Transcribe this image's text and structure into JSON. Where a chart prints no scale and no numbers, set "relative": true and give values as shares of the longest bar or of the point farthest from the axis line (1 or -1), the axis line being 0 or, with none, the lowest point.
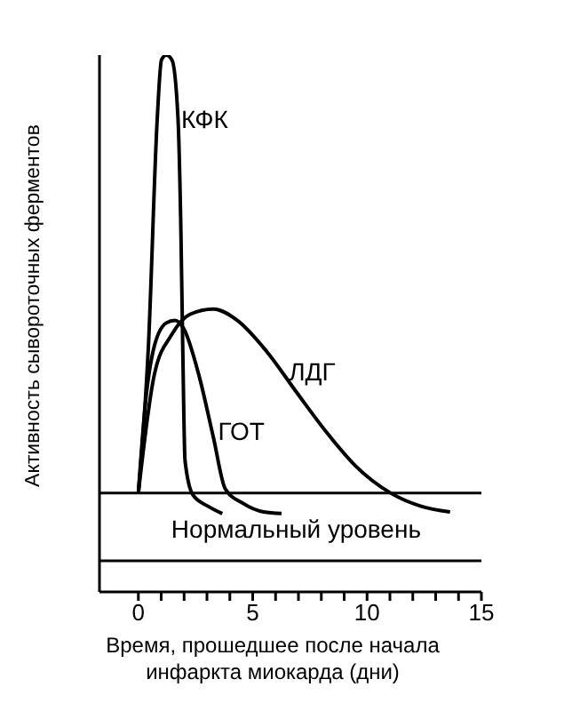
{
  "chart_data": {
    "type": "line",
    "relative": true,
    "xlabel": "Время, прошедшее после начала\nинфаркта миокарда (дни)",
    "ylabel": "Активность сывороточных ферментов",
    "xlim": [
      -1.7,
      15
    ],
    "xticks": [
      0,
      {
        "value": 1,
        "label": null
      },
      {
        "value": 2,
        "label": null
      },
      {
        "value": 3,
        "label": null
      },
      {
        "value": 4,
        "label": null
      },
      5,
      {
        "value": 6,
        "label": null
      },
      {
        "value": 7,
        "label": null
      },
      {
        "value": 8,
        "label": null
      },
      {
        "value": 9,
        "label": null
      },
      10,
      {
        "value": 11,
        "label": null
      },
      {
        "value": 12,
        "label": null
      },
      {
        "value": 13,
        "label": null
      },
      {
        "value": 14,
        "label": null
      },
      15
    ],
    "marker": "none",
    "line_style": "solid",
    "series": [
      {
        "color": "#000000",
        "x": [
          0,
          0.44,
          0.83,
          1.01,
          1.22,
          1.47,
          1.73,
          1.86,
          1.94,
          2.04,
          2.38,
          3.03,
          3.67
        ],
        "values": [
          0.184,
          0.458,
          0.885,
          0.991,
          1.0,
          0.991,
          0.885,
          0.672,
          0.458,
          0.245,
          0.181,
          0.16,
          0.146
        ]
      },
      {
        "color": "#000000",
        "x": [
          0,
          0.31,
          0.7,
          1.22,
          1.6,
          1.99,
          2.64,
          3.28,
          3.8,
          4.58,
          5.48,
          6.26
        ],
        "values": [
          0.184,
          0.352,
          0.458,
          0.501,
          0.506,
          0.49,
          0.405,
          0.288,
          0.192,
          0.165,
          0.149,
          0.146
        ]
      },
      {
        "color": "#000000",
        "x": [
          0,
          0.7,
          1.47,
          2.25,
          3.28,
          4.32,
          5.61,
          6.9,
          8.2,
          9.49,
          11.04,
          12.33,
          13.63
        ],
        "values": [
          0.184,
          0.405,
          0.48,
          0.517,
          0.527,
          0.506,
          0.448,
          0.373,
          0.299,
          0.235,
          0.184,
          0.16,
          0.149
        ]
      }
    ],
    "ref_lines": [
      {
        "axis": "y",
        "value": 0.184
      },
      {
        "axis": "y",
        "value": 0.058
      }
    ],
    "annotations": [
      "КФК",
      "ГОТ",
      "ЛДГ",
      "Нормальный уровень"
    ]
  }
}
